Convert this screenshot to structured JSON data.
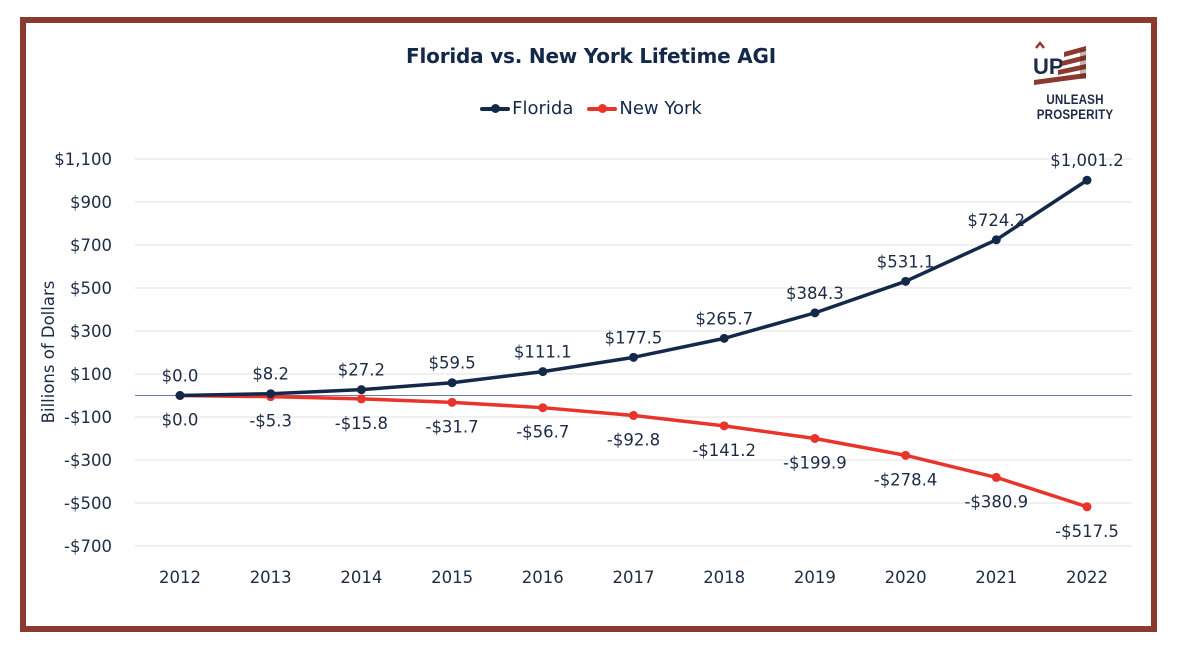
{
  "brand": {
    "name": "UNLEASH PROSPERITY",
    "monogram": "UP",
    "colors": {
      "navy": "#14284a",
      "red": "#8b3a30"
    }
  },
  "chart_data": {
    "type": "line",
    "title": "Florida vs. New York Lifetime AGI",
    "xlabel": "",
    "ylabel": "Billions of Dollars",
    "x": [
      "2012",
      "2013",
      "2014",
      "2015",
      "2016",
      "2017",
      "2018",
      "2019",
      "2020",
      "2021",
      "2022"
    ],
    "ylim": [
      -700,
      1100
    ],
    "yticks": [
      1100,
      900,
      700,
      500,
      300,
      100,
      -100,
      -300,
      -500,
      -700
    ],
    "ytick_labels": [
      "$1,100",
      "$900",
      "$700",
      "$500",
      "$300",
      "$100",
      "-$100",
      "-$300",
      "-$500",
      "-$700"
    ],
    "grid": true,
    "zero_line": true,
    "legend_position": "top-center",
    "series": [
      {
        "name": "Florida",
        "color": "#14284a",
        "values": [
          0.0,
          8.2,
          27.2,
          59.5,
          111.1,
          177.5,
          265.7,
          384.3,
          531.1,
          724.2,
          1001.2
        ],
        "labels": [
          "$0.0",
          "$8.2",
          "$27.2",
          "$59.5",
          "$111.1",
          "$177.5",
          "$265.7",
          "$384.3",
          "$531.1",
          "$724.2",
          "$1,001.2"
        ],
        "label_position": "above"
      },
      {
        "name": "New York",
        "color": "#e8342a",
        "values": [
          0.0,
          -5.3,
          -15.8,
          -31.7,
          -56.7,
          -92.8,
          -141.2,
          -199.9,
          -278.4,
          -380.9,
          -517.5
        ],
        "labels": [
          "$0.0",
          "-$5.3",
          "-$15.8",
          "-$31.7",
          "-$56.7",
          "-$92.8",
          "-$141.2",
          "-$199.9",
          "-$278.4",
          "-$380.9",
          "-$517.5"
        ],
        "label_position": "below"
      }
    ]
  }
}
